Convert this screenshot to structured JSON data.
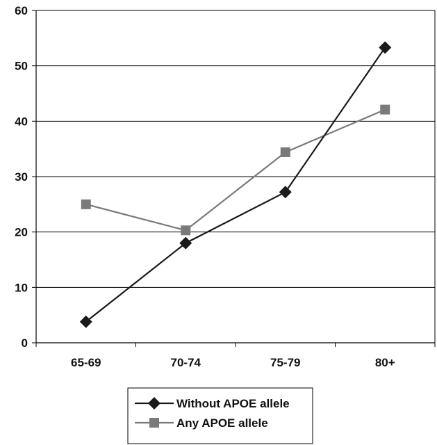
{
  "chart_data": {
    "type": "line",
    "title": "",
    "xlabel": "",
    "ylabel": "",
    "categories": [
      "65-69",
      "70-74",
      "75-79",
      "80+"
    ],
    "ylim": [
      0,
      60
    ],
    "yticks": [
      0,
      10,
      20,
      30,
      40,
      50,
      60
    ],
    "grid": true,
    "legend_position": "bottom",
    "series": [
      {
        "name": "Without APOE allele",
        "values": [
          3.8,
          18.0,
          27.2,
          53.3
        ],
        "color": "#1a1a1a",
        "marker": "diamond"
      },
      {
        "name": "Any APOE allele",
        "values": [
          25.0,
          20.3,
          34.4,
          42.1
        ],
        "color": "#7a7a7a",
        "marker": "square"
      }
    ]
  }
}
